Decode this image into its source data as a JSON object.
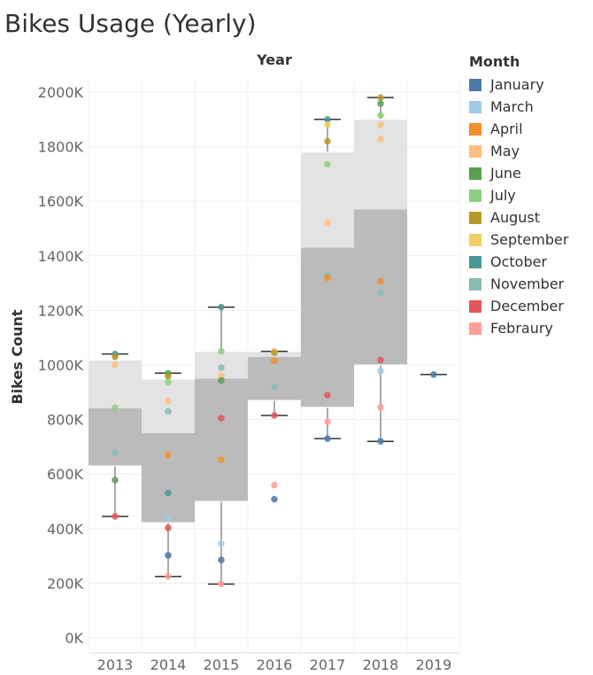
{
  "chart_data": {
    "type": "box",
    "title": "Bikes Usage (Yearly)",
    "column_header": "Year",
    "ylabel": "Bikes Count",
    "ylim": [
      0,
      2050000
    ],
    "yticks": [
      0,
      200000,
      400000,
      600000,
      800000,
      1000000,
      1200000,
      1400000,
      1600000,
      1800000,
      2000000
    ],
    "ytick_labels": [
      "0K",
      "200K",
      "400K",
      "600K",
      "800K",
      "1000K",
      "1200K",
      "1400K",
      "1600K",
      "1800K",
      "2000K"
    ],
    "grid": true,
    "legend": {
      "title": "Month",
      "placement": "right",
      "entries": [
        {
          "name": "January",
          "color": "#4e79a7"
        },
        {
          "name": "March",
          "color": "#a0cbe8"
        },
        {
          "name": "April",
          "color": "#f28e2b"
        },
        {
          "name": "May",
          "color": "#ffbe7d"
        },
        {
          "name": "June",
          "color": "#59a14f"
        },
        {
          "name": "July",
          "color": "#8cd17d"
        },
        {
          "name": "August",
          "color": "#b6992d"
        },
        {
          "name": "September",
          "color": "#f1ce63"
        },
        {
          "name": "October",
          "color": "#499894"
        },
        {
          "name": "November",
          "color": "#86bcb6"
        },
        {
          "name": "December",
          "color": "#e15759"
        },
        {
          "name": "Febraury",
          "color": "#ff9d9a"
        }
      ]
    },
    "categories": [
      "2013",
      "2014",
      "2015",
      "2016",
      "2017",
      "2018",
      "2019"
    ],
    "boxes": [
      {
        "category": "2013",
        "min": 445000,
        "q1": 630000,
        "median": 842000,
        "q3": 1018000,
        "max": 1040000
      },
      {
        "category": "2014",
        "min": 225000,
        "q1": 422000,
        "median": 750000,
        "q3": 948000,
        "max": 970000
      },
      {
        "category": "2015",
        "min": 197000,
        "q1": 500000,
        "median": 950000,
        "q3": 1050000,
        "max": 1212000
      },
      {
        "category": "2016",
        "min": 815000,
        "q1": 870000,
        "median": 1030000,
        "q3": 1050000,
        "max": 1050000
      },
      {
        "category": "2017",
        "min": 730000,
        "q1": 845000,
        "median": 1430000,
        "q3": 1780000,
        "max": 1900000
      },
      {
        "category": "2018",
        "min": 720000,
        "q1": 1000000,
        "median": 1570000,
        "q3": 1900000,
        "max": 1980000
      },
      {
        "category": "2019",
        "min": 965000,
        "q1": 965000,
        "median": 965000,
        "q3": 965000,
        "max": 965000
      }
    ],
    "points": [
      {
        "year": "2013",
        "month": "October",
        "value": 1040000
      },
      {
        "year": "2013",
        "month": "August",
        "value": 1030000
      },
      {
        "year": "2013",
        "month": "May",
        "value": 1000000
      },
      {
        "year": "2013",
        "month": "July",
        "value": 843000
      },
      {
        "year": "2013",
        "month": "November",
        "value": 678000
      },
      {
        "year": "2013",
        "month": "June",
        "value": 578000
      },
      {
        "year": "2013",
        "month": "December",
        "value": 445000
      },
      {
        "year": "2014",
        "month": "June",
        "value": 970000
      },
      {
        "year": "2014",
        "month": "August",
        "value": 958000
      },
      {
        "year": "2014",
        "month": "July",
        "value": 937000
      },
      {
        "year": "2014",
        "month": "May",
        "value": 868000
      },
      {
        "year": "2014",
        "month": "November",
        "value": 830000
      },
      {
        "year": "2014",
        "month": "April",
        "value": 670000
      },
      {
        "year": "2014",
        "month": "October",
        "value": 531000
      },
      {
        "year": "2014",
        "month": "March",
        "value": 440000
      },
      {
        "year": "2014",
        "month": "December",
        "value": 403000
      },
      {
        "year": "2014",
        "month": "January",
        "value": 302000
      },
      {
        "year": "2014",
        "month": "Febraury",
        "value": 225000
      },
      {
        "year": "2015",
        "month": "October",
        "value": 1212000
      },
      {
        "year": "2015",
        "month": "July",
        "value": 1050000
      },
      {
        "year": "2015",
        "month": "November",
        "value": 990000
      },
      {
        "year": "2015",
        "month": "May",
        "value": 960000
      },
      {
        "year": "2015",
        "month": "June",
        "value": 943000
      },
      {
        "year": "2015",
        "month": "December",
        "value": 805000
      },
      {
        "year": "2015",
        "month": "April",
        "value": 653000
      },
      {
        "year": "2015",
        "month": "March",
        "value": 345000
      },
      {
        "year": "2015",
        "month": "January",
        "value": 285000
      },
      {
        "year": "2015",
        "month": "Febraury",
        "value": 197000
      },
      {
        "year": "2016",
        "month": "May",
        "value": 1050000
      },
      {
        "year": "2016",
        "month": "August",
        "value": 1045000
      },
      {
        "year": "2016",
        "month": "April",
        "value": 1015000
      },
      {
        "year": "2016",
        "month": "November",
        "value": 920000
      },
      {
        "year": "2016",
        "month": "December",
        "value": 815000
      },
      {
        "year": "2016",
        "month": "Febraury",
        "value": 560000
      },
      {
        "year": "2016",
        "month": "January",
        "value": 508000
      },
      {
        "year": "2017",
        "month": "October",
        "value": 1900000
      },
      {
        "year": "2017",
        "month": "September",
        "value": 1880000
      },
      {
        "year": "2017",
        "month": "August",
        "value": 1820000
      },
      {
        "year": "2017",
        "month": "July",
        "value": 1735000
      },
      {
        "year": "2017",
        "month": "May",
        "value": 1522000
      },
      {
        "year": "2017",
        "month": "November",
        "value": 1330000
      },
      {
        "year": "2017",
        "month": "April",
        "value": 1320000
      },
      {
        "year": "2017",
        "month": "December",
        "value": 890000
      },
      {
        "year": "2017",
        "month": "Febraury",
        "value": 792000
      },
      {
        "year": "2017",
        "month": "January",
        "value": 730000
      },
      {
        "year": "2018",
        "month": "August",
        "value": 1980000
      },
      {
        "year": "2018",
        "month": "June",
        "value": 1958000
      },
      {
        "year": "2018",
        "month": "July",
        "value": 1915000
      },
      {
        "year": "2018",
        "month": "May",
        "value": 1880000
      },
      {
        "year": "2018",
        "month": "May",
        "value": 1828000
      },
      {
        "year": "2018",
        "month": "April",
        "value": 1308000
      },
      {
        "year": "2018",
        "month": "November",
        "value": 1265000
      },
      {
        "year": "2018",
        "month": "December",
        "value": 1018000
      },
      {
        "year": "2018",
        "month": "March",
        "value": 978000
      },
      {
        "year": "2018",
        "month": "Febraury",
        "value": 845000
      },
      {
        "year": "2018",
        "month": "January",
        "value": 720000
      },
      {
        "year": "2019",
        "month": "January",
        "value": 965000
      }
    ]
  }
}
